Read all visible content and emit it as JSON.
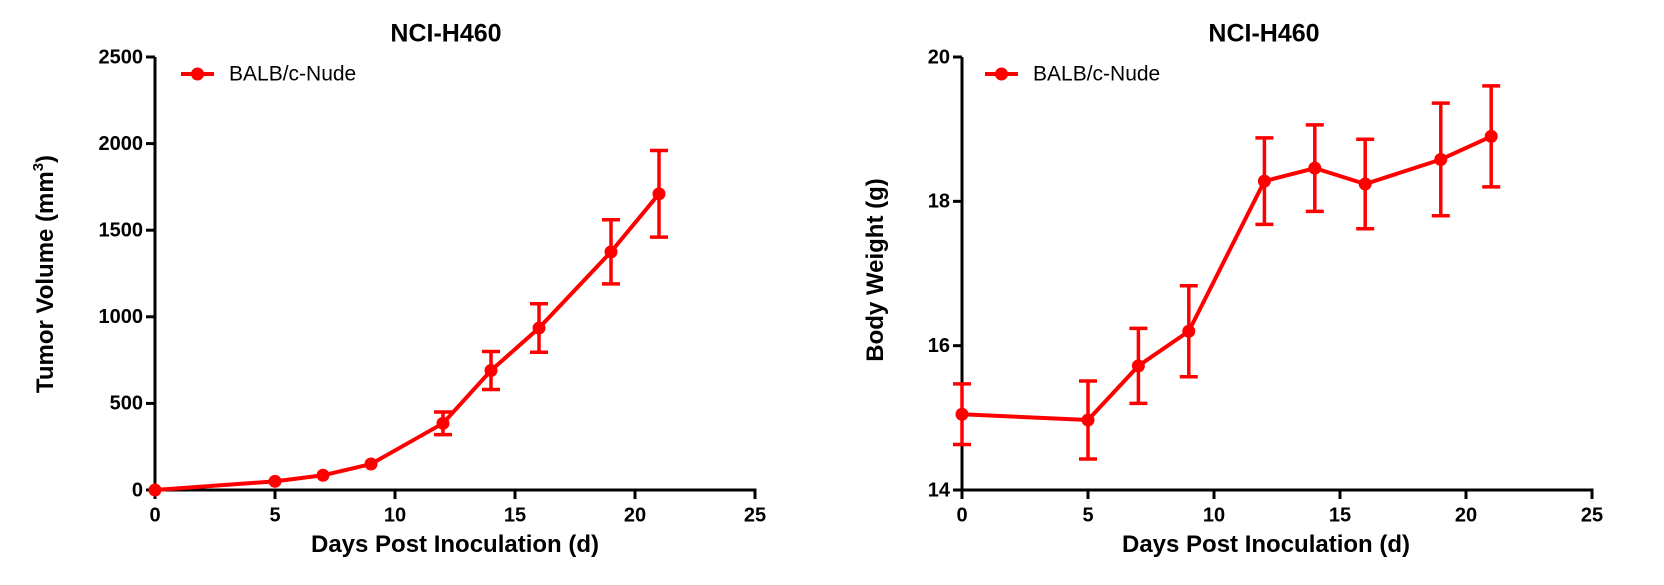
{
  "chart_data": [
    {
      "type": "line",
      "title": "NCI-H460",
      "xlabel": "Days Post Inoculation (d)",
      "ylabel": "Tumor Volume (mm",
      "ylabel_sup": "3",
      "ylabel_close": ")",
      "xlim": [
        0,
        25
      ],
      "ylim": [
        0,
        2500
      ],
      "xticks": [
        0,
        5,
        10,
        15,
        20,
        25
      ],
      "yticks": [
        0,
        500,
        1000,
        1500,
        2000,
        2500
      ],
      "grid": false,
      "legend_position": "top-left",
      "series": [
        {
          "name": "BALB/c-Nude",
          "color": "#ff0000",
          "x": [
            0,
            5,
            7,
            9,
            12,
            14,
            16,
            19,
            21
          ],
          "y": [
            0,
            50,
            85,
            150,
            385,
            690,
            935,
            1375,
            1710
          ],
          "err": [
            0,
            0,
            0,
            0,
            65,
            110,
            140,
            185,
            250
          ]
        }
      ]
    },
    {
      "type": "line",
      "title": "NCI-H460",
      "xlabel": "Days Post Inoculation (d)",
      "ylabel": "Body Weight (g)",
      "xlim": [
        0,
        25
      ],
      "ylim": [
        14,
        20
      ],
      "xticks": [
        0,
        5,
        10,
        15,
        20,
        25
      ],
      "yticks": [
        14,
        16,
        18,
        20
      ],
      "grid": false,
      "legend_position": "top-left",
      "series": [
        {
          "name": "BALB/c-Nude",
          "color": "#ff0000",
          "x": [
            0,
            5,
            7,
            9,
            12,
            14,
            16,
            19,
            21
          ],
          "y": [
            15.05,
            14.97,
            15.72,
            16.2,
            18.28,
            18.46,
            18.24,
            18.58,
            18.9
          ],
          "err": [
            0.42,
            0.54,
            0.52,
            0.63,
            0.6,
            0.6,
            0.62,
            0.78,
            0.7
          ]
        }
      ]
    }
  ]
}
